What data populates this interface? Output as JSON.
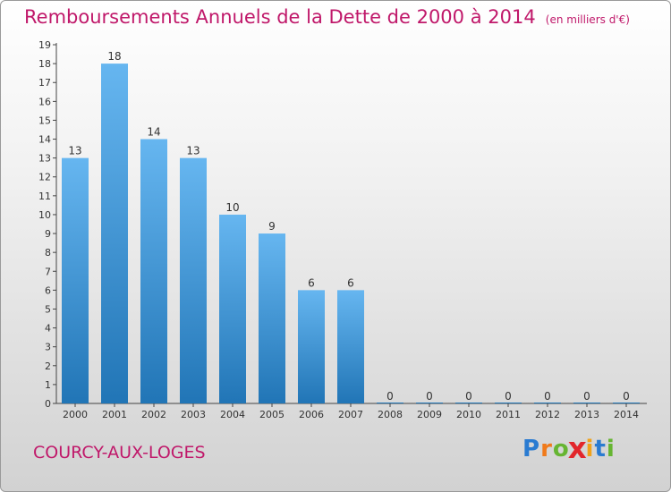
{
  "title": "Remboursements Annuels de la Dette de 2000 à 2014",
  "unit": "(en milliers d'€)",
  "place": "COURCY-AUX-LOGES",
  "logo": {
    "letters": [
      "P",
      "r",
      "o",
      "x",
      "i",
      "t",
      "i"
    ],
    "colors": [
      "#2a7bd1",
      "#f07a1a",
      "#66b532",
      "#e2262b",
      "#f0a21a",
      "#2a7bd1",
      "#66b532"
    ]
  },
  "colors": {
    "bar_top": "#66b6f0",
    "bar_bottom": "#2175b6",
    "title": "#c0186a"
  },
  "chart_data": {
    "type": "bar",
    "categories": [
      "2000",
      "2001",
      "2002",
      "2003",
      "2004",
      "2005",
      "2006",
      "2007",
      "2008",
      "2009",
      "2010",
      "2011",
      "2012",
      "2013",
      "2014"
    ],
    "values": [
      13,
      18,
      14,
      13,
      10,
      9,
      6,
      6,
      0,
      0,
      0,
      0,
      0,
      0,
      0
    ],
    "yticks": [
      "0",
      "1",
      "2",
      "3",
      "4",
      "5",
      "6",
      "7",
      "8",
      "9",
      "10",
      "11",
      "12",
      "13",
      "14",
      "15",
      "16",
      "17",
      "18",
      "19"
    ],
    "ylim": [
      0,
      19
    ],
    "grid": false,
    "legend": "none"
  }
}
